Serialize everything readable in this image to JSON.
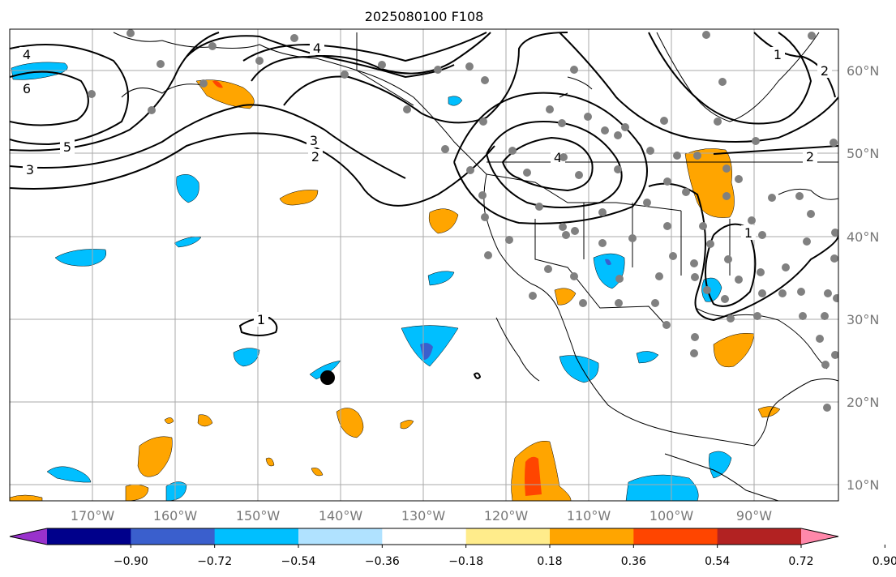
{
  "title": "2025080100 F108",
  "lon_labels": [
    "170°W",
    "160°W",
    "150°W",
    "140°W",
    "130°W",
    "120°W",
    "110°W",
    "100°W",
    "90°W"
  ],
  "lat_labels": [
    "60°N",
    "50°N",
    "40°N",
    "30°N",
    "20°N",
    "10°N"
  ],
  "contour_labels": [
    "4",
    "6",
    "5",
    "3",
    "4",
    "3",
    "2",
    "1",
    "4",
    "2",
    "1",
    "2",
    "1"
  ],
  "colorbar": {
    "colors": [
      "#9932cc",
      "#00008b",
      "#3a5fcd",
      "#00bfff",
      "#b0e2ff",
      "#ffffff",
      "#ffec8b",
      "#ffa500",
      "#ff4500",
      "#b22222",
      "#ff88aa"
    ],
    "tick_labels": [
      "−0.90",
      "−0.72",
      "−0.54",
      "−0.36",
      "−0.18",
      "0.18",
      "0.36",
      "0.54",
      "0.72",
      "0.90"
    ]
  },
  "colors": {
    "blue_fill": "#00bfff",
    "orange_fill": "#ffa500",
    "red_fill": "#ff4500",
    "station_dot": "#808080",
    "grid": "#aaaaaa"
  },
  "marker": "storm-center-dot"
}
